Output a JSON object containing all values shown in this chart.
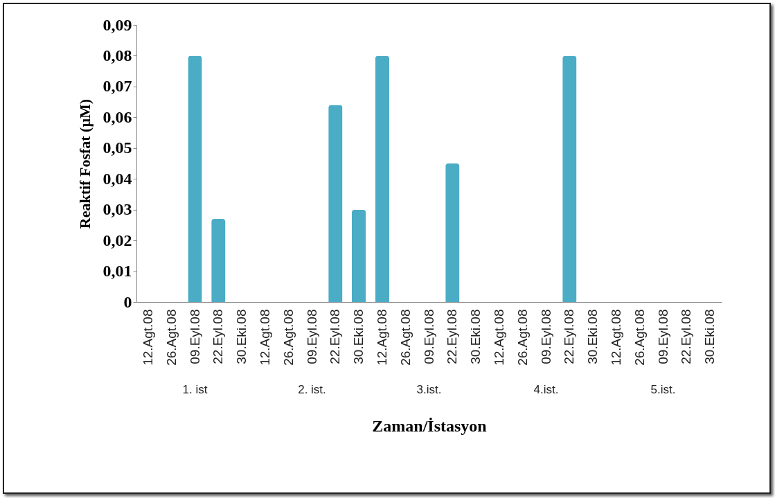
{
  "chart_data": {
    "type": "bar",
    "ylabel": "Reaktif Fosfat (µM)",
    "xlabel": "Zaman/İstasyon",
    "categories": [
      "12.Agt.08",
      "26.Agt.08",
      "09.Eyl.08",
      "22.Eyl.08",
      "30.Eki.08",
      "12.Agt.08",
      "26.Agt.08",
      "09.Eyl.08",
      "22.Eyl.08",
      "30.Eki.08",
      "12.Agt.08",
      "26.Agt.08",
      "09.Eyl.08",
      "22.Eyl.08",
      "30.Eki.08",
      "12.Agt.08",
      "26.Agt.08",
      "09.Eyl.08",
      "22.Eyl.08",
      "30.Eki.08",
      "12.Agt.08",
      "26.Agt.08",
      "09.Eyl.08",
      "22.Eyl.08",
      "30.Eki.08"
    ],
    "values": [
      0,
      0,
      0.08,
      0.027,
      0,
      0,
      0,
      0,
      0.064,
      0.03,
      0.08,
      0,
      0,
      0.045,
      0,
      0,
      0,
      0,
      0.08,
      0,
      0,
      0,
      0,
      0,
      0
    ],
    "color": "#4bacc6",
    "ylim": [
      0,
      0.09
    ],
    "yticks": [
      0,
      {
        "value": 0.01,
        "label": "0,01"
      },
      {
        "value": 0.02,
        "label": "0,02"
      },
      {
        "value": 0.03,
        "label": "0,03"
      },
      {
        "value": 0.04,
        "label": "0,04"
      },
      {
        "value": 0.05,
        "label": "0,05"
      },
      {
        "value": 0.06,
        "label": "0,06"
      },
      {
        "value": 0.07,
        "label": "0,07"
      },
      {
        "value": 0.08,
        "label": "0,08"
      },
      {
        "value": 0.09,
        "label": "0,09"
      }
    ],
    "annotations": [
      "1. ist",
      "2. ist.",
      "3.ist.",
      "4.ist.",
      "5.ist."
    ],
    "grid": false
  }
}
